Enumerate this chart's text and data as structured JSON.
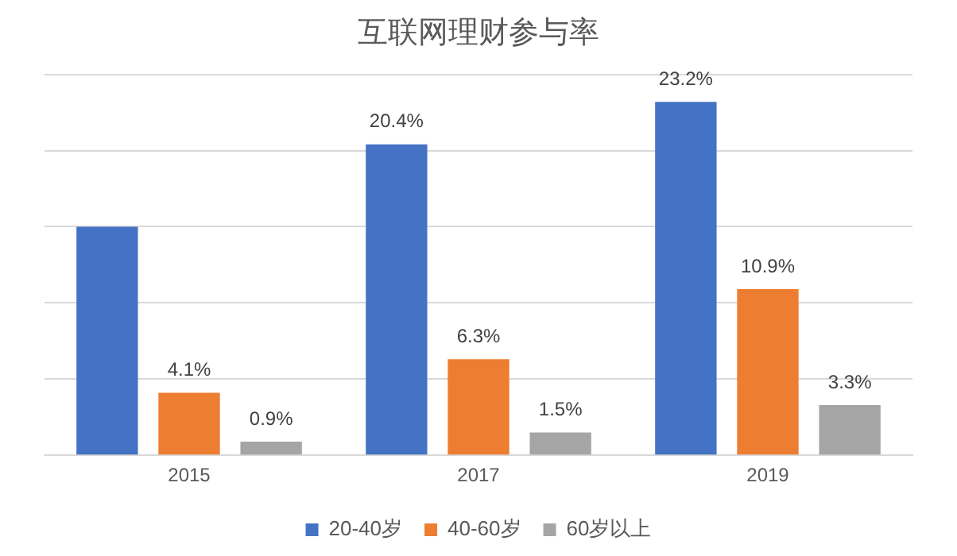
{
  "chart_data": {
    "type": "bar",
    "title": "互联网理财参与率",
    "categories": [
      "2015",
      "2017",
      "2019"
    ],
    "series": [
      {
        "name": "20-40岁",
        "color": "#4472c4",
        "values": [
          15.0,
          20.4,
          23.2
        ],
        "value_labels": [
          null,
          "20.4%",
          "23.2%"
        ]
      },
      {
        "name": "40-60岁",
        "color": "#ed7d31",
        "values": [
          4.1,
          6.3,
          10.9
        ],
        "value_labels": [
          "4.1%",
          "6.3%",
          "10.9%"
        ]
      },
      {
        "name": "60岁以上",
        "color": "#a5a5a5",
        "values": [
          0.9,
          1.5,
          3.3
        ],
        "value_labels": [
          "0.9%",
          "1.5%",
          "3.3%"
        ]
      }
    ],
    "ylim": [
      0,
      25
    ],
    "yticks": [
      {
        "value": 0,
        "label": null
      },
      {
        "value": 5,
        "label": null
      },
      {
        "value": 10,
        "label": null
      },
      {
        "value": 15,
        "label": null
      },
      {
        "value": 20,
        "label": null
      },
      {
        "value": 25,
        "label": null
      }
    ],
    "grid": "y",
    "legend": "bottom",
    "tick_labels": "x"
  }
}
